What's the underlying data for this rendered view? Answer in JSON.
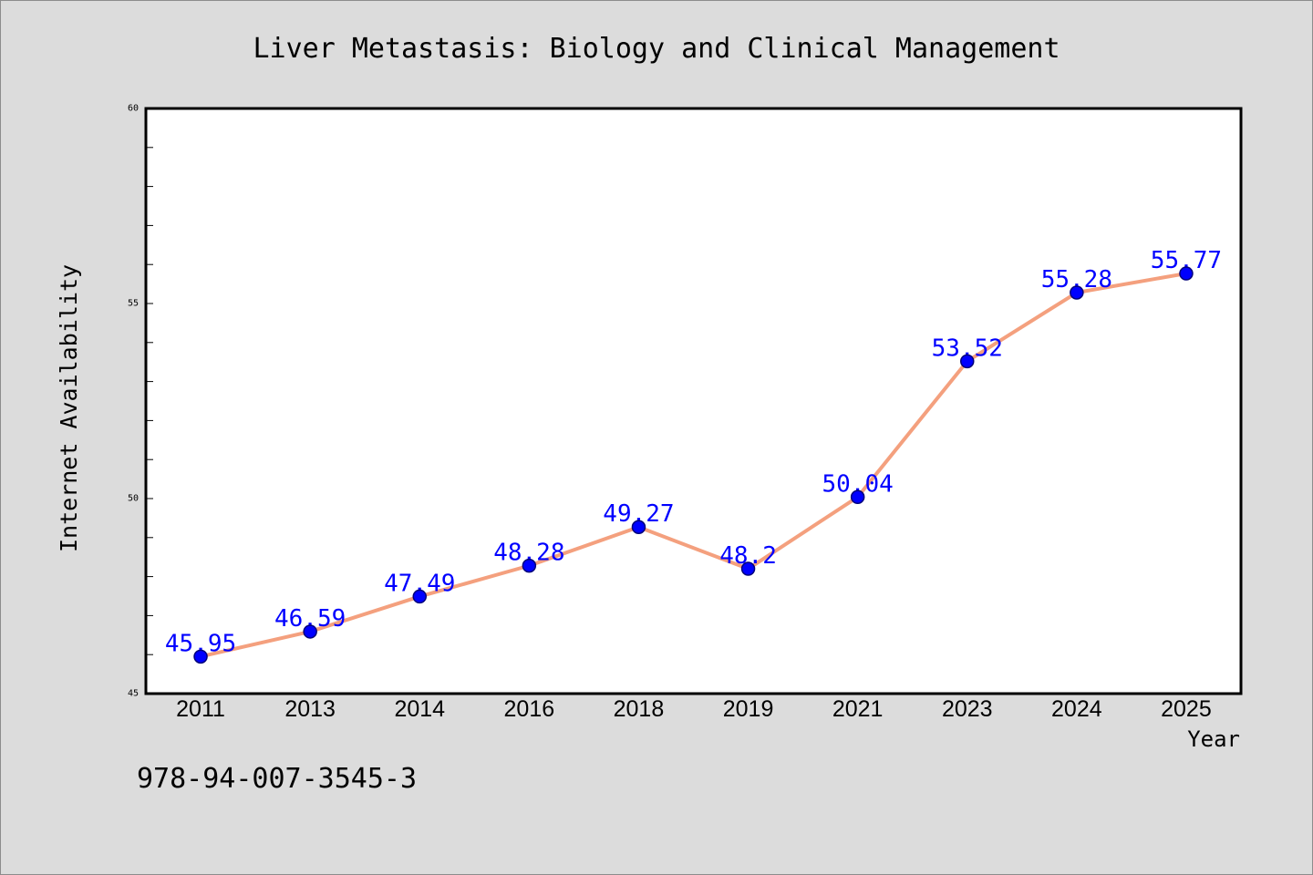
{
  "chart_data": {
    "type": "line",
    "title": "Liver Metastasis: Biology and Clinical Management",
    "xlabel": "Year",
    "ylabel": "Internet Availability",
    "categories": [
      "2011",
      "2013",
      "2014",
      "2016",
      "2018",
      "2019",
      "2021",
      "2023",
      "2024",
      "2025"
    ],
    "series": [
      {
        "values": [
          45.95,
          46.59,
          47.49,
          48.28,
          49.27,
          48.2,
          50.04,
          53.52,
          55.28,
          55.77
        ],
        "data_labels_shown": true,
        "marker": "circle"
      }
    ],
    "ylim": [
      45,
      60
    ],
    "yticks": [
      45,
      50,
      55,
      60
    ],
    "y_minor_step": 1,
    "grid": false,
    "legend": "none",
    "colors": {
      "background": "#dcdcdc",
      "plot_background": "#ffffff",
      "axis": "#000000",
      "line": "#f4a07e",
      "marker": "#0000ff",
      "marker_edge": "#00007a",
      "data_label": "#0000ff"
    }
  },
  "footer": {
    "isbn": "978-94-007-3545-3"
  }
}
